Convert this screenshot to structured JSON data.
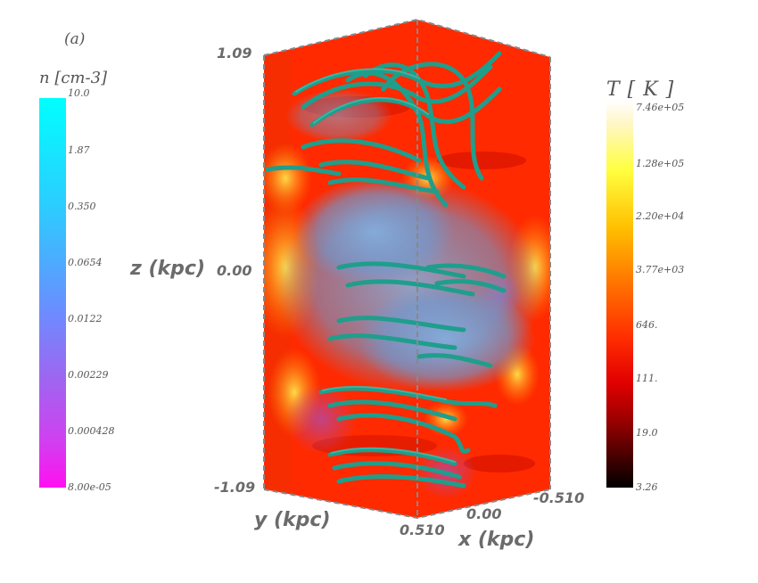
{
  "panel_label": "(a)",
  "density_colorbar": {
    "title": "n [cm-3]",
    "ticks": [
      "10.0",
      "1.87",
      "0.350",
      "0.0654",
      "0.0122",
      "0.00229",
      "0.000428",
      "8.00e-05"
    ],
    "top_color": "#00ffff",
    "bottom_color": "#ff10f0"
  },
  "temperature_colorbar": {
    "title": "T [ K  ]",
    "ticks": [
      "7.46e+05",
      "1.28e+05",
      "2.20e+04",
      "3.77e+03",
      "646.",
      "111.",
      "19.0",
      "3.26"
    ],
    "top_color": "#ffffff",
    "bottom_color": "#000000"
  },
  "axes": {
    "z_label": "z (kpc)",
    "z_top": "1.09",
    "z_mid": "0.00",
    "z_bottom": "-1.09",
    "y_label": "y (kpc)",
    "y_tick": "0.510",
    "x_label": "x (kpc)",
    "x_mid": "0.00",
    "x_right": "-0.510"
  },
  "colors": {
    "field_lines": "#1f9e8c",
    "gas_surface": "#6fa6d8",
    "background_volume": "#ff2a00"
  }
}
